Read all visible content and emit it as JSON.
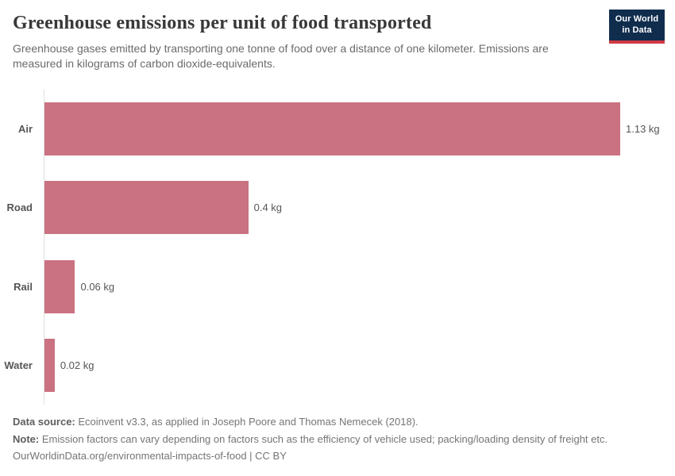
{
  "header": {
    "title": "Greenhouse emissions per unit of food transported",
    "subtitle": "Greenhouse gases emitted by transporting one tonne of food over a distance of one kilometer. Emissions are measured in kilograms of carbon dioxide-equivalents.",
    "logo": {
      "line1": "Our World",
      "line2": "in Data"
    }
  },
  "chart_data": {
    "type": "bar",
    "orientation": "horizontal",
    "title": "Greenhouse emissions per unit of food transported",
    "categories": [
      "Air",
      "Road",
      "Rail",
      "Water"
    ],
    "values": [
      1.13,
      0.4,
      0.06,
      0.02
    ],
    "value_labels": [
      "1.13 kg",
      "0.4 kg",
      "0.06 kg",
      "0.02 kg"
    ],
    "unit": "kg",
    "xlabel": "",
    "ylabel": "",
    "xlim": [
      0,
      1.21
    ],
    "grid": false,
    "legend": "none",
    "bar_color": "#ca7282"
  },
  "footer": {
    "data_source_label": "Data source:",
    "data_source_text": " Ecoinvent v3.3, as applied in Joseph Poore and Thomas Nemecek (2018).",
    "note_label": "Note:",
    "note_text": " Emission factors can vary depending on factors such as the efficiency of vehicle used; packing/loading density of freight etc.",
    "license_text": "OurWorldinData.org/environmental-impacts-of-food | CC BY"
  },
  "colors": {
    "bar": "#ca7282",
    "logo_navy": "#102d4e",
    "logo_red": "#cf3a45",
    "axis_line": "#dedede",
    "title_text": "#383838",
    "body_text": "#6b6b6b"
  }
}
